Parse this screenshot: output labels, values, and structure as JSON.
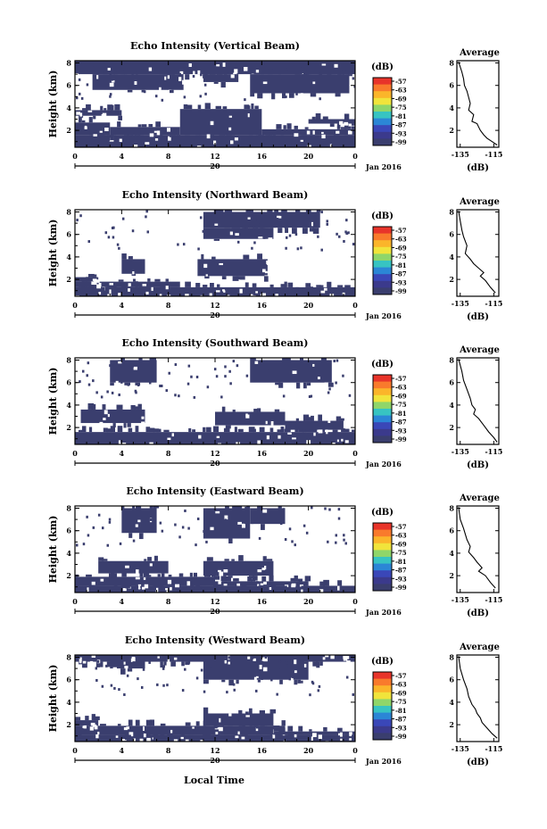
{
  "figure": {
    "xlabel": "Local Time",
    "units_label": "(dB)",
    "date_label": "Jan 2016",
    "day_label": "20"
  },
  "colorbar": {
    "ticks": [
      "-57",
      "-63",
      "-69",
      "-75",
      "-81",
      "-87",
      "-93",
      "-99"
    ],
    "colors": [
      "#e8342a",
      "#f97a2c",
      "#fbb52a",
      "#f1e43b",
      "#8fd66a",
      "#37c4c2",
      "#2b86d6",
      "#3a47b8",
      "#3b3a8c",
      "#3a3e6e"
    ]
  },
  "chart_data": [
    {
      "type": "heatmap",
      "title": "Echo Intensity (Vertical Beam)",
      "ylabel": "Height (km)",
      "x_ticks": [
        "0",
        "4",
        "8",
        "12",
        "16",
        "20",
        "0"
      ],
      "y_ticks": [
        "2",
        "4",
        "6",
        "8"
      ],
      "xlim": [
        0,
        24
      ],
      "ylim": [
        0.5,
        8.2
      ],
      "fill_color": "#3a3e6e",
      "regions": [
        [
          0,
          24,
          0.5,
          1.6
        ],
        [
          0,
          3,
          1.6,
          2.7
        ],
        [
          9,
          16,
          1.6,
          3.9
        ],
        [
          3,
          9,
          1.6,
          2.3
        ],
        [
          16,
          24,
          1.6,
          2.1
        ],
        [
          0,
          4,
          3.3,
          3.8
        ],
        [
          20,
          24,
          2.6,
          3.0
        ],
        [
          0,
          24,
          7.0,
          8.2
        ],
        [
          1.5,
          9.3,
          5.6,
          7.0
        ],
        [
          11,
          14,
          6.3,
          7.0
        ],
        [
          15,
          23.5,
          5.3,
          7.0
        ]
      ],
      "average": {
        "title": "Average",
        "xlabel": "(dB)",
        "x_ticks": [
          "-135",
          "-115"
        ],
        "y_ticks": [
          "2",
          "4",
          "6",
          "8"
        ],
        "xlim": [
          -137,
          -112
        ],
        "ylim": [
          0.5,
          8.2
        ],
        "x": [
          -136,
          -134,
          -133,
          -132.5,
          -131,
          -129,
          -130,
          -127,
          -128,
          -125,
          -124,
          -123,
          -121,
          -119,
          -116,
          -113
        ],
        "y": [
          8.1,
          7.2,
          6.6,
          6.0,
          5.5,
          4.4,
          3.8,
          3.4,
          2.8,
          2.6,
          2.3,
          2.0,
          1.6,
          1.3,
          1.0,
          0.7
        ]
      }
    },
    {
      "type": "heatmap",
      "title": "Echo Intensity (Northward Beam)",
      "ylabel": "Height (km)",
      "x_ticks": [
        "0",
        "4",
        "8",
        "12",
        "16",
        "20",
        "0"
      ],
      "y_ticks": [
        "2",
        "4",
        "6",
        "8"
      ],
      "xlim": [
        0,
        24
      ],
      "ylim": [
        0.5,
        8.2
      ],
      "fill_color": "#3a3e6e",
      "regions": [
        [
          0,
          24,
          0.5,
          1.3
        ],
        [
          0,
          9,
          1.3,
          1.8
        ],
        [
          0,
          2,
          1.8,
          2.2
        ],
        [
          4,
          6,
          2.5,
          3.8
        ],
        [
          10.5,
          16.5,
          2.3,
          3.8
        ],
        [
          16.5,
          24,
          0.5,
          1.0
        ],
        [
          11,
          21,
          6.6,
          8.0
        ],
        [
          11,
          17,
          5.6,
          6.6
        ]
      ],
      "average": {
        "title": "Average",
        "xlabel": "(dB)",
        "x_ticks": [
          "-135",
          "-115"
        ],
        "y_ticks": [
          "2",
          "4",
          "6",
          "8"
        ],
        "xlim": [
          -137,
          -112
        ],
        "ylim": [
          0.5,
          8.2
        ],
        "x": [
          -136,
          -135,
          -134,
          -133,
          -131,
          -132,
          -129,
          -127,
          -124,
          -121,
          -123,
          -120,
          -117,
          -114
        ],
        "y": [
          8.1,
          7.2,
          6.4,
          5.8,
          5.0,
          4.3,
          3.8,
          3.4,
          3.0,
          2.6,
          2.3,
          1.9,
          1.3,
          0.8
        ]
      }
    },
    {
      "type": "heatmap",
      "title": "Echo Intensity (Southward Beam)",
      "ylabel": "Height (km)",
      "x_ticks": [
        "0",
        "4",
        "8",
        "12",
        "16",
        "20",
        "0"
      ],
      "y_ticks": [
        "2",
        "4",
        "6",
        "8"
      ],
      "xlim": [
        0,
        24
      ],
      "ylim": [
        0.5,
        8.2
      ],
      "fill_color": "#3a3e6e",
      "regions": [
        [
          0,
          24,
          0.5,
          1.6
        ],
        [
          0.5,
          6,
          2.4,
          3.6
        ],
        [
          12,
          18,
          2.2,
          3.4
        ],
        [
          18,
          23,
          1.8,
          2.6
        ],
        [
          3,
          7,
          6.0,
          8.0
        ],
        [
          15,
          22,
          6.0,
          8.0
        ]
      ],
      "average": {
        "title": "Average",
        "xlabel": "(dB)",
        "x_ticks": [
          "-135",
          "-115"
        ],
        "y_ticks": [
          "2",
          "4",
          "6",
          "8"
        ],
        "xlim": [
          -137,
          -112
        ],
        "ylim": [
          0.5,
          8.2
        ],
        "x": [
          -136,
          -134,
          -133,
          -131,
          -129,
          -128,
          -126,
          -127,
          -124,
          -121,
          -118,
          -115,
          -113
        ],
        "y": [
          8.1,
          7.0,
          6.2,
          5.4,
          4.6,
          4.0,
          3.6,
          3.2,
          2.8,
          2.2,
          1.6,
          1.1,
          0.7
        ]
      }
    },
    {
      "type": "heatmap",
      "title": "Echo Intensity (Eastward Beam)",
      "ylabel": "Height (km)",
      "x_ticks": [
        "0",
        "4",
        "8",
        "12",
        "16",
        "20",
        "0"
      ],
      "y_ticks": [
        "2",
        "4",
        "6",
        "8"
      ],
      "xlim": [
        0,
        24
      ],
      "ylim": [
        0.5,
        8.2
      ],
      "fill_color": "#3a3e6e",
      "regions": [
        [
          0,
          24,
          0.5,
          1.1
        ],
        [
          0,
          12,
          1.1,
          1.9
        ],
        [
          12,
          20,
          1.1,
          1.5
        ],
        [
          2,
          8,
          2.2,
          3.3
        ],
        [
          11,
          17,
          2.0,
          3.3
        ],
        [
          4,
          7,
          5.8,
          8.0
        ],
        [
          11,
          15,
          5.3,
          8.0
        ],
        [
          15,
          18,
          6.6,
          8.0
        ]
      ],
      "average": {
        "title": "Average",
        "xlabel": "(dB)",
        "x_ticks": [
          "-135",
          "-115"
        ],
        "y_ticks": [
          "2",
          "4",
          "6",
          "8"
        ],
        "xlim": [
          -137,
          -112
        ],
        "ylim": [
          0.5,
          8.2
        ],
        "x": [
          -136,
          -135,
          -133,
          -131,
          -129,
          -130,
          -127,
          -125,
          -122,
          -124,
          -120,
          -117,
          -114
        ],
        "y": [
          8.1,
          7.0,
          6.2,
          5.2,
          4.6,
          4.1,
          3.6,
          3.2,
          2.7,
          2.4,
          2.0,
          1.4,
          0.9
        ]
      }
    },
    {
      "type": "heatmap",
      "title": "Echo Intensity (Westward Beam)",
      "ylabel": "Height (km)",
      "x_ticks": [
        "0",
        "4",
        "8",
        "12",
        "16",
        "20",
        "0"
      ],
      "y_ticks": [
        "2",
        "4",
        "6",
        "8"
      ],
      "xlim": [
        0,
        24
      ],
      "ylim": [
        0.5,
        8.2
      ],
      "fill_color": "#3a3e6e",
      "regions": [
        [
          0,
          24,
          0.5,
          1.1
        ],
        [
          0,
          18,
          1.1,
          1.9
        ],
        [
          0,
          2,
          1.9,
          2.4
        ],
        [
          11,
          17,
          1.9,
          3.0
        ],
        [
          17,
          24,
          1.1,
          1.4
        ],
        [
          3,
          6,
          7.0,
          8.0
        ],
        [
          11,
          20,
          6.0,
          8.0
        ],
        [
          0,
          24,
          7.6,
          8.2
        ]
      ],
      "average": {
        "title": "Average",
        "xlabel": "(dB)",
        "x_ticks": [
          "-135",
          "-115"
        ],
        "y_ticks": [
          "2",
          "4",
          "6",
          "8"
        ],
        "xlim": [
          -137,
          -112
        ],
        "ylim": [
          0.5,
          8.2
        ],
        "x": [
          -136,
          -135,
          -133,
          -131,
          -130,
          -128,
          -126,
          -125,
          -123,
          -122,
          -119,
          -116,
          -113
        ],
        "y": [
          8.1,
          7.0,
          6.0,
          5.2,
          4.5,
          3.8,
          3.4,
          3.0,
          2.6,
          2.2,
          1.7,
          1.2,
          0.8
        ]
      }
    }
  ]
}
